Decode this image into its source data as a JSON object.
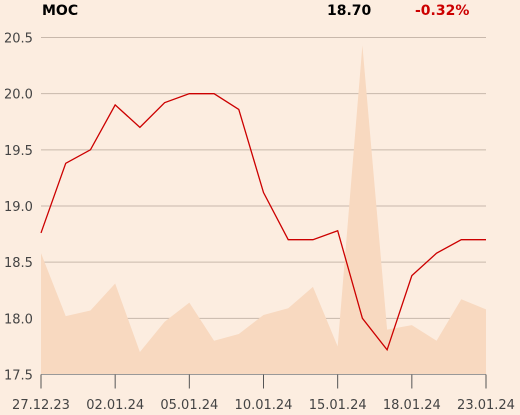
{
  "header": {
    "ticker": "MOC",
    "price": "18.70",
    "change": "-0.32%"
  },
  "colors": {
    "background": "#fcede0",
    "price_line": "#cc0000",
    "volume_area": "#f8d9c0",
    "grid": "#c8b8ab",
    "change_negative": "#cc0000"
  },
  "chart_data": {
    "type": "line",
    "title": "MOC",
    "xlabel": "",
    "ylabel": "",
    "ylim": [
      17.5,
      20.6
    ],
    "y_ticks": [
      "20.5",
      "20.0",
      "19.5",
      "19.0",
      "18.5",
      "18.0",
      "17.5"
    ],
    "x_ticks": [
      "27.12.23",
      "02.01.24",
      "05.01.24",
      "10.01.24",
      "15.01.24",
      "18.01.24",
      "23.01.24"
    ],
    "x": [
      "27.12.23",
      "28.12.23",
      "29.12.23",
      "02.01.24",
      "03.01.24",
      "04.01.24",
      "05.01.24",
      "08.01.24",
      "09.01.24",
      "10.01.24",
      "11.01.24",
      "12.01.24",
      "15.01.24",
      "16.01.24",
      "17.01.24",
      "18.01.24",
      "19.01.24",
      "22.01.24",
      "23.01.24"
    ],
    "series": [
      {
        "values": [
          18.76,
          19.38,
          19.5,
          19.9,
          19.7,
          19.92,
          20.0,
          20.0,
          19.86,
          19.12,
          18.7,
          18.7,
          18.78,
          18.0,
          17.72,
          18.38,
          18.58,
          18.7,
          18.7
        ]
      },
      {
        "values": [
          18.58,
          18.02,
          18.07,
          18.31,
          17.7,
          17.97,
          18.14,
          17.8,
          17.86,
          18.03,
          18.09,
          18.28,
          17.75,
          20.43,
          17.9,
          17.94,
          17.8,
          18.17,
          18.08
        ]
      }
    ],
    "grid": true
  }
}
